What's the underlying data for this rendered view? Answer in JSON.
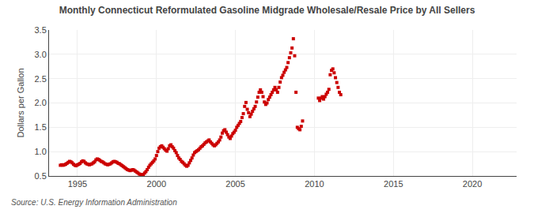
{
  "chart_data": {
    "type": "scatter",
    "title": "Monthly Connecticut Reformulated Gasoline Midgrade Wholesale/Resale Price by All Sellers",
    "ylabel": "Dollars per Gallon",
    "annotations": [
      "Source: U.S. Energy Information Administration"
    ],
    "color": "#cc0000",
    "marker": "square",
    "grid": true,
    "xlim": [
      1993.2,
      2022.8
    ],
    "ylim": [
      0.5,
      3.5
    ],
    "xticks": [
      1995,
      2000,
      2005,
      2010,
      2015,
      2020
    ],
    "yticks": [
      0.5,
      {
        "value": 1.0,
        "label": "1.0"
      },
      1.5,
      {
        "value": 2.0,
        "label": "2.0"
      },
      2.5,
      {
        "value": 3.0,
        "label": "3.0"
      },
      3.5
    ],
    "x": [
      1993.917,
      1994.0,
      1994.083,
      1994.167,
      1994.25,
      1994.333,
      1994.417,
      1994.5,
      1994.583,
      1994.667,
      1994.75,
      1994.833,
      1994.917,
      1995.0,
      1995.083,
      1995.167,
      1995.25,
      1995.333,
      1995.417,
      1995.5,
      1995.583,
      1995.667,
      1995.75,
      1995.833,
      1995.917,
      1996.0,
      1996.083,
      1996.167,
      1996.25,
      1996.333,
      1996.417,
      1996.5,
      1996.583,
      1996.667,
      1996.75,
      1996.833,
      1996.917,
      1997.0,
      1997.083,
      1997.167,
      1997.25,
      1997.333,
      1997.417,
      1997.5,
      1997.583,
      1997.667,
      1997.75,
      1997.833,
      1997.917,
      1998.0,
      1998.083,
      1998.167,
      1998.25,
      1998.333,
      1998.417,
      1998.5,
      1998.583,
      1998.667,
      1998.75,
      1998.833,
      1998.917,
      1999.0,
      1999.083,
      1999.167,
      1999.25,
      1999.333,
      1999.417,
      1999.5,
      1999.583,
      1999.667,
      1999.75,
      1999.833,
      1999.917,
      2000.0,
      2000.083,
      2000.167,
      2000.25,
      2000.333,
      2000.417,
      2000.5,
      2000.583,
      2000.667,
      2000.75,
      2000.833,
      2000.917,
      2001.0,
      2001.083,
      2001.167,
      2001.25,
      2001.333,
      2001.417,
      2001.5,
      2001.583,
      2001.667,
      2001.75,
      2001.833,
      2001.917,
      2002.0,
      2002.083,
      2002.167,
      2002.25,
      2002.333,
      2002.417,
      2002.5,
      2002.583,
      2002.667,
      2002.75,
      2002.833,
      2002.917,
      2003.0,
      2003.083,
      2003.167,
      2003.25,
      2003.333,
      2003.417,
      2003.5,
      2003.583,
      2003.667,
      2003.75,
      2003.833,
      2003.917,
      2004.0,
      2004.083,
      2004.167,
      2004.25,
      2004.333,
      2004.417,
      2004.5,
      2004.583,
      2004.667,
      2004.75,
      2004.833,
      2004.917,
      2005.0,
      2005.083,
      2005.167,
      2005.25,
      2005.333,
      2005.417,
      2005.5,
      2005.583,
      2005.667,
      2005.75,
      2005.833,
      2005.917,
      2006.0,
      2006.083,
      2006.167,
      2006.25,
      2006.333,
      2006.417,
      2006.5,
      2006.583,
      2006.667,
      2006.75,
      2006.833,
      2006.917,
      2007.0,
      2007.083,
      2007.167,
      2007.25,
      2007.333,
      2007.417,
      2007.5,
      2007.583,
      2007.667,
      2007.75,
      2007.833,
      2007.917,
      2008.0,
      2008.083,
      2008.167,
      2008.25,
      2008.333,
      2008.417,
      2008.5,
      2008.583,
      2008.667,
      2008.75,
      2008.833,
      2008.917,
      2009.0,
      2009.083,
      2009.167,
      2009.25,
      2010.25,
      2010.333,
      2010.417,
      2010.5,
      2010.583,
      2010.667,
      2010.75,
      2010.833,
      2010.917,
      2011.0,
      2011.083,
      2011.167,
      2011.25,
      2011.333,
      2011.417,
      2011.5,
      2011.583,
      2011.667
    ],
    "values": [
      0.72,
      0.73,
      0.72,
      0.73,
      0.74,
      0.76,
      0.78,
      0.8,
      0.79,
      0.77,
      0.74,
      0.72,
      0.71,
      0.73,
      0.74,
      0.76,
      0.79,
      0.81,
      0.8,
      0.77,
      0.75,
      0.74,
      0.73,
      0.74,
      0.75,
      0.77,
      0.79,
      0.83,
      0.85,
      0.84,
      0.82,
      0.8,
      0.79,
      0.77,
      0.75,
      0.74,
      0.73,
      0.74,
      0.75,
      0.77,
      0.79,
      0.8,
      0.79,
      0.78,
      0.76,
      0.75,
      0.73,
      0.71,
      0.69,
      0.67,
      0.65,
      0.63,
      0.62,
      0.61,
      0.62,
      0.63,
      0.62,
      0.6,
      0.58,
      0.56,
      0.54,
      0.53,
      0.52,
      0.53,
      0.56,
      0.59,
      0.63,
      0.68,
      0.72,
      0.75,
      0.78,
      0.81,
      0.85,
      0.92,
      1.0,
      1.07,
      1.1,
      1.12,
      1.09,
      1.06,
      1.03,
      1.01,
      1.06,
      1.12,
      1.14,
      1.1,
      1.07,
      1.02,
      0.98,
      0.92,
      0.87,
      0.84,
      0.8,
      0.78,
      0.75,
      0.72,
      0.7,
      0.72,
      0.77,
      0.82,
      0.87,
      0.93,
      0.98,
      1.0,
      1.02,
      1.04,
      1.07,
      1.1,
      1.12,
      1.15,
      1.18,
      1.2,
      1.22,
      1.24,
      1.2,
      1.17,
      1.14,
      1.12,
      1.14,
      1.17,
      1.2,
      1.24,
      1.3,
      1.38,
      1.43,
      1.45,
      1.4,
      1.35,
      1.3,
      1.27,
      1.32,
      1.37,
      1.4,
      1.44,
      1.5,
      1.54,
      1.58,
      1.62,
      1.7,
      1.78,
      1.93,
      2.01,
      1.87,
      1.8,
      1.72,
      1.77,
      1.83,
      1.88,
      1.93,
      2.02,
      2.12,
      2.22,
      2.27,
      2.22,
      2.13,
      2.02,
      1.97,
      2.0,
      2.07,
      2.12,
      2.17,
      2.22,
      2.27,
      2.32,
      2.27,
      2.22,
      2.32,
      2.43,
      2.52,
      2.57,
      2.63,
      2.68,
      2.73,
      2.83,
      2.93,
      3.03,
      3.13,
      3.32,
      2.97,
      2.22,
      1.5,
      1.47,
      1.45,
      1.52,
      1.63,
      2.1,
      2.05,
      2.1,
      2.13,
      2.08,
      2.13,
      2.18,
      2.22,
      2.28,
      2.58,
      2.67,
      2.7,
      2.62,
      2.52,
      2.42,
      2.32,
      2.22,
      2.17
    ]
  }
}
